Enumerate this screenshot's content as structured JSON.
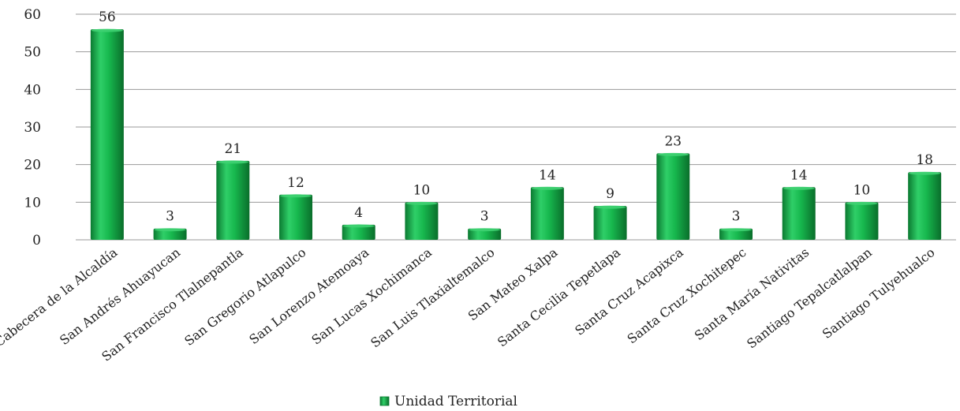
{
  "chart_data": {
    "type": "bar",
    "categories": [
      "Cabecera de la Alcaldía",
      "San Andrés Ahuayucan",
      "San Francisco Tlalnepantla",
      "San Gregorio Atlapulco",
      "San Lorenzo Atemoaya",
      "San Lucas Xochimanca",
      "San Luis Tlaxialtemalco",
      "San Mateo Xalpa",
      "Santa Cecilia Tepetlapa",
      "Santa Cruz Acapixca",
      "Santa Cruz Xochitepec",
      "Santa María Nativitas",
      "Santiago Tepalcatlalpan",
      "Santiago Tulyehualco"
    ],
    "series": [
      {
        "name": "Unidad Territorial",
        "values": [
          56,
          3,
          21,
          12,
          4,
          10,
          3,
          14,
          9,
          23,
          3,
          14,
          10,
          18
        ]
      }
    ],
    "ylim": [
      0,
      60
    ],
    "yticks": [
      0,
      10,
      20,
      30,
      40,
      50,
      60
    ],
    "grid": true,
    "legend_position": "bottom",
    "colors": {
      "bar_light": "#5ee08a",
      "bar_main": "#17b84e",
      "bar_dark": "#0b7a31",
      "bar_top": "#3fd172",
      "grid": "#9a9a9a"
    }
  }
}
